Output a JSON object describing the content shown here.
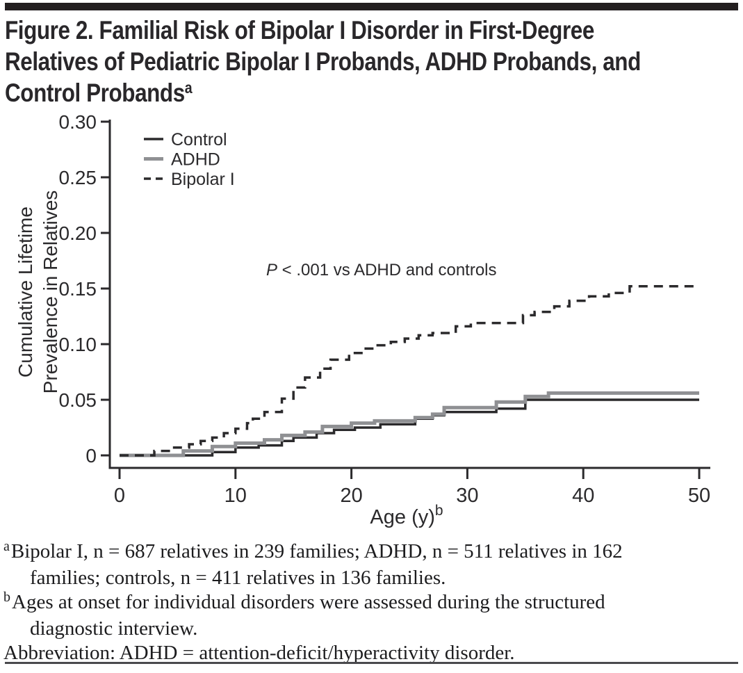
{
  "page": {
    "accent_color": "#231f20",
    "title_lines": [
      "Figure 2. Familial Risk of Bipolar I Disorder in First-Degree",
      "Relatives of Pediatric Bipolar I Probands, ADHD Probands, and",
      "Control Probands"
    ],
    "title_superscript": "a"
  },
  "chart_data": {
    "type": "line",
    "subtype": "step-after-survival-curve",
    "title": "",
    "xlabel": "Age (y)",
    "xlabel_sup": "b",
    "ylabel_lines": [
      "Cumulative Lifetime",
      "Prevalence in Relatives"
    ],
    "xlim": [
      0,
      50
    ],
    "ylim": [
      0,
      0.3
    ],
    "grid": false,
    "axis_color": "#2b2a2c",
    "xticks": [
      0,
      10,
      20,
      30,
      40,
      50
    ],
    "yticks": [
      0,
      0.05,
      0.1,
      0.15,
      0.2,
      0.25,
      0.3
    ],
    "ytick_labels": [
      "0",
      "0.05",
      "0.10",
      "0.15",
      "0.20",
      "0.25",
      "0.30"
    ],
    "legend_position": "upper-left-inside",
    "annotation": {
      "italic_prefix": "P",
      "text": " < .001 vs ADHD and controls",
      "full_text": "P < .001 vs ADHD and controls"
    },
    "series": [
      {
        "name": "Control",
        "style": "solid",
        "color": "#2b2a2c",
        "width": 3.5,
        "points": [
          [
            0,
            0
          ],
          [
            8,
            0.003
          ],
          [
            10,
            0.007
          ],
          [
            12,
            0.009
          ],
          [
            14,
            0.013
          ],
          [
            15,
            0.016
          ],
          [
            17,
            0.02
          ],
          [
            18.5,
            0.023
          ],
          [
            20.3,
            0.025
          ],
          [
            22.5,
            0.028
          ],
          [
            25.5,
            0.033
          ],
          [
            27,
            0.036
          ],
          [
            28,
            0.039
          ],
          [
            32.5,
            0.042
          ],
          [
            35,
            0.05
          ],
          [
            50,
            0.05
          ]
        ]
      },
      {
        "name": "ADHD",
        "style": "solid",
        "color": "#8f9093",
        "width": 5,
        "points": [
          [
            0,
            0
          ],
          [
            5.5,
            0.004
          ],
          [
            8,
            0.008
          ],
          [
            10,
            0.011
          ],
          [
            12.5,
            0.014
          ],
          [
            14,
            0.018
          ],
          [
            16,
            0.021
          ],
          [
            17.5,
            0.026
          ],
          [
            20,
            0.029
          ],
          [
            22,
            0.031
          ],
          [
            25.5,
            0.034
          ],
          [
            27,
            0.037
          ],
          [
            28,
            0.043
          ],
          [
            32.5,
            0.048
          ],
          [
            35,
            0.053
          ],
          [
            37,
            0.056
          ],
          [
            50,
            0.056
          ]
        ]
      },
      {
        "name": "Bipolar I",
        "style": "dashed",
        "color": "#2b2a2c",
        "width": 3.5,
        "points": [
          [
            0,
            0
          ],
          [
            3,
            0.004
          ],
          [
            4.5,
            0.007
          ],
          [
            6,
            0.01
          ],
          [
            7,
            0.013
          ],
          [
            8,
            0.016
          ],
          [
            9,
            0.02
          ],
          [
            10,
            0.024
          ],
          [
            11,
            0.029
          ],
          [
            11.5,
            0.033
          ],
          [
            12.5,
            0.039
          ],
          [
            14,
            0.051
          ],
          [
            15,
            0.061
          ],
          [
            16,
            0.07
          ],
          [
            17.3,
            0.078
          ],
          [
            18.2,
            0.086
          ],
          [
            19.8,
            0.092
          ],
          [
            21,
            0.096
          ],
          [
            22,
            0.099
          ],
          [
            23.4,
            0.102
          ],
          [
            24.6,
            0.105
          ],
          [
            25.8,
            0.108
          ],
          [
            27,
            0.11
          ],
          [
            29,
            0.116
          ],
          [
            30.3,
            0.119
          ],
          [
            34.8,
            0.126
          ],
          [
            35.8,
            0.129
          ],
          [
            37.5,
            0.134
          ],
          [
            38.8,
            0.139
          ],
          [
            40.5,
            0.143
          ],
          [
            42.2,
            0.146
          ],
          [
            44,
            0.152
          ],
          [
            50,
            0.152
          ]
        ]
      }
    ]
  },
  "footnotes": [
    {
      "marker": "a",
      "lines": [
        "Bipolar I, n = 687 relatives in 239 families; ADHD, n = 511 relatives in 162",
        "families; controls, n = 411 relatives in 136 families."
      ]
    },
    {
      "marker": "b",
      "lines": [
        "Ages at onset for individual disorders were assessed during the structured",
        "diagnostic interview."
      ]
    }
  ],
  "abbreviation_line": "Abbreviation: ADHD = attention-deficit/hyperactivity disorder."
}
